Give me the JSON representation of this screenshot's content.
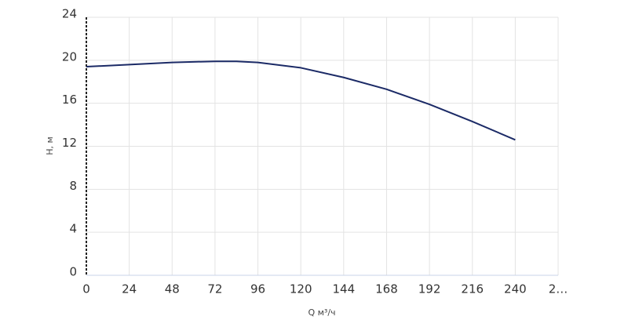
{
  "chart_data": {
    "type": "line",
    "x_label": "Q м³/ч",
    "y_label": "H, м",
    "x": [
      0,
      24,
      48,
      72,
      84,
      96,
      120,
      144,
      168,
      192,
      216,
      240
    ],
    "series": [
      {
        "name": "H",
        "color": "#1b2a66",
        "values": [
          19.4,
          19.6,
          19.8,
          19.9,
          19.9,
          19.8,
          19.3,
          18.4,
          17.3,
          15.9,
          14.3,
          12.6
        ]
      }
    ],
    "xlim": [
      0,
      264
    ],
    "xticks": [
      0,
      24,
      48,
      72,
      96,
      120,
      144,
      168,
      192,
      216,
      240,
      {
        "value": 264,
        "label": "2…"
      }
    ],
    "ylim": [
      0,
      24
    ],
    "yticks": [
      0,
      4,
      8,
      12,
      16,
      20,
      24
    ],
    "grid": true
  }
}
